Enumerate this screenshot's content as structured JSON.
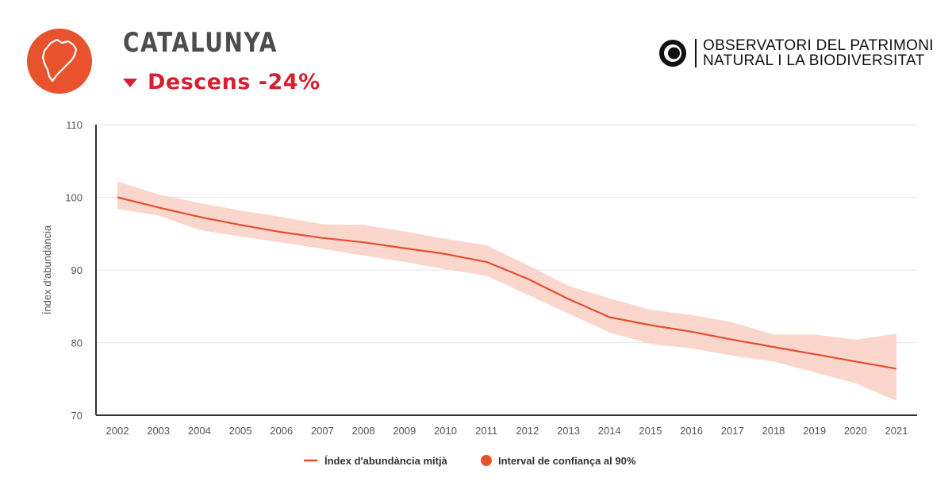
{
  "header": {
    "region": "CATALUNYA",
    "trend_label": "Descens -24%",
    "org_line1": "OBSERVATORI DEL PATRIMONI",
    "org_line2": "NATURAL I LA BIODIVERSITAT"
  },
  "colors": {
    "accent": "#e8532e",
    "trend_down": "#d3212f",
    "line": "#e0502f",
    "band": "#fbd2c8"
  },
  "icons": {
    "badge": "catalonia-map-icon",
    "org": "observatori-logo-icon",
    "trend": "triangle-down-icon"
  },
  "chart_data": {
    "type": "line",
    "title": "",
    "xlabel": "",
    "ylabel": "Índex d'abundància",
    "ylim": [
      70,
      110
    ],
    "yticks": [
      70,
      80,
      90,
      100,
      110
    ],
    "grid": true,
    "x": [
      "2002",
      "2003",
      "2004",
      "2005",
      "2006",
      "2007",
      "2008",
      "2009",
      "2010",
      "2011",
      "2012",
      "2013",
      "2014",
      "2015",
      "2016",
      "2017",
      "2018",
      "2019",
      "2020",
      "2021"
    ],
    "series": [
      {
        "name": "Índex d'abundància mitjà",
        "values": [
          100.0,
          98.6,
          97.3,
          96.2,
          95.2,
          94.4,
          93.8,
          93.0,
          92.2,
          91.1,
          88.8,
          86.0,
          83.5,
          82.4,
          81.5,
          80.4,
          79.4,
          78.4,
          77.4,
          76.4
        ]
      }
    ],
    "confidence_interval": {
      "name": "Interval de confiança al 90%",
      "lower": [
        98.4,
        97.5,
        95.5,
        94.6,
        93.8,
        92.9,
        92.0,
        91.1,
        90.1,
        89.2,
        86.6,
        84.0,
        81.4,
        79.8,
        79.2,
        78.2,
        77.4,
        75.9,
        74.4,
        72.0
      ],
      "upper": [
        102.2,
        100.4,
        99.2,
        98.2,
        97.3,
        96.3,
        96.2,
        95.3,
        94.3,
        93.4,
        90.7,
        87.8,
        86.1,
        84.5,
        83.8,
        82.8,
        81.1,
        81.1,
        80.4,
        81.2
      ]
    },
    "legend": {
      "position": "bottom",
      "items": [
        "Índex d'abundància mitjà",
        "Interval de confiança al 90%"
      ]
    }
  }
}
